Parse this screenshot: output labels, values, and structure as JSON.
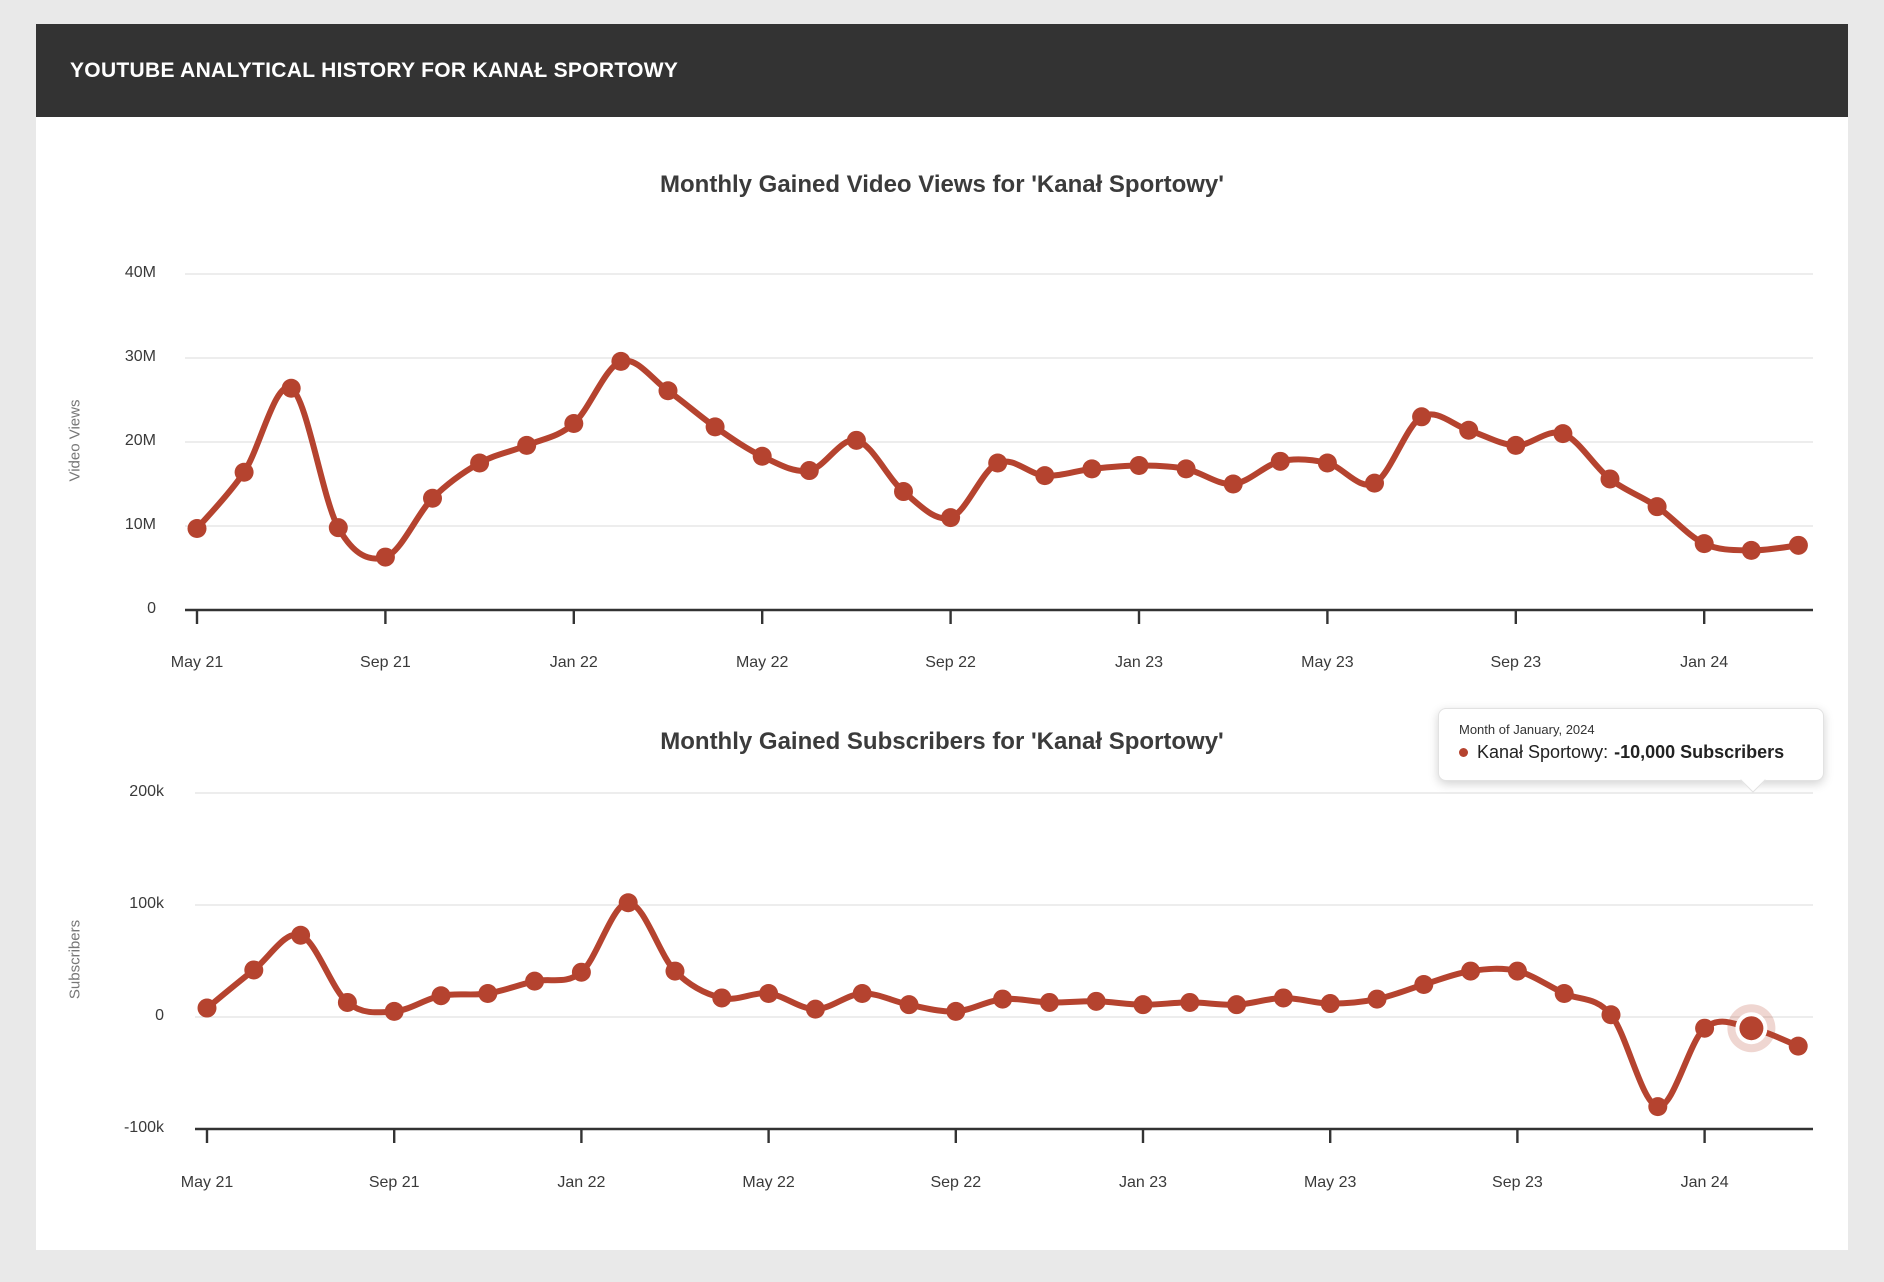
{
  "header": {
    "title": "YOUTUBE ANALYTICAL HISTORY FOR KANAŁ SPORTOWY"
  },
  "colors": {
    "accent": "#b5432f",
    "halo": "rgba(181,67,47,0.22)",
    "grid": "#e7e7e7",
    "axis": "#333333",
    "header_bg": "#333333",
    "page_bg": "#e9e9e9",
    "card_bg": "#ffffff"
  },
  "x_tick_labels": [
    "May 21",
    "Sep 21",
    "Jan 22",
    "May 22",
    "Sep 22",
    "Jan 23",
    "May 23",
    "Sep 23",
    "Jan 24"
  ],
  "chart_data": [
    {
      "type": "line",
      "title": "Monthly Gained Video Views for 'Kanał Sportowy'",
      "ylabel": "Video Views",
      "unit": "million views per month",
      "legend": "none",
      "grid": true,
      "ylim": [
        0,
        42
      ],
      "y_ticks": [
        {
          "label": "40M",
          "v": 40
        },
        {
          "label": "30M",
          "v": 30
        },
        {
          "label": "20M",
          "v": 20
        },
        {
          "label": "10M",
          "v": 10
        },
        {
          "label": "0",
          "v": 0
        }
      ],
      "categories": [
        "May 21",
        "Jun 21",
        "Jul 21",
        "Aug 21",
        "Sep 21",
        "Oct 21",
        "Nov 21",
        "Dec 21",
        "Jan 22",
        "Feb 22",
        "Mar 22",
        "Apr 22",
        "May 22",
        "Jun 22",
        "Jul 22",
        "Aug 22",
        "Sep 22",
        "Oct 22",
        "Nov 22",
        "Dec 22",
        "Jan 23",
        "Feb 23",
        "Mar 23",
        "Apr 23",
        "May 23",
        "Jun 23",
        "Jul 23",
        "Aug 23",
        "Sep 23",
        "Oct 23",
        "Nov 23",
        "Dec 23",
        "Jan 24",
        "Feb 24",
        "Mar 24"
      ],
      "values": [
        9.7,
        16.4,
        26.4,
        9.8,
        6.3,
        13.3,
        17.5,
        19.6,
        22.2,
        29.6,
        26.1,
        21.8,
        18.3,
        16.6,
        20.2,
        14.1,
        11.0,
        17.5,
        16.0,
        16.8,
        17.2,
        16.8,
        15.0,
        17.7,
        17.5,
        15.1,
        23.0,
        21.4,
        19.6,
        21.0,
        15.6,
        12.3,
        7.9,
        7.1,
        7.7
      ]
    },
    {
      "type": "line",
      "title": "Monthly Gained Subscribers for 'Kanał Sportowy'",
      "ylabel": "Subscribers",
      "unit": "thousand subscribers per month",
      "legend": "none",
      "grid": true,
      "ylim": [
        -115,
        215
      ],
      "y_ticks": [
        {
          "label": "200k",
          "v": 200
        },
        {
          "label": "100k",
          "v": 100
        },
        {
          "label": "0",
          "v": 0
        },
        {
          "label": "-100k",
          "v": -100
        }
      ],
      "categories": [
        "May 21",
        "Jun 21",
        "Jul 21",
        "Aug 21",
        "Sep 21",
        "Oct 21",
        "Nov 21",
        "Dec 21",
        "Jan 22",
        "Feb 22",
        "Mar 22",
        "Apr 22",
        "May 22",
        "Jun 22",
        "Jul 22",
        "Aug 22",
        "Sep 22",
        "Oct 22",
        "Nov 22",
        "Dec 22",
        "Jan 23",
        "Feb 23",
        "Mar 23",
        "Apr 23",
        "May 23",
        "Jun 23",
        "Jul 23",
        "Aug 23",
        "Sep 23",
        "Oct 23",
        "Nov 23",
        "Dec 23",
        "Jan 24",
        "Feb 24",
        "Mar 24"
      ],
      "values": [
        8,
        42,
        73,
        13,
        5,
        19,
        21,
        32,
        40,
        102,
        41,
        17,
        21,
        7,
        21,
        11,
        5,
        16,
        13,
        14,
        11,
        13,
        11,
        17,
        12,
        16,
        29,
        41,
        41,
        21,
        2,
        -80,
        -10,
        -10,
        -26
      ],
      "hover_index": 33
    }
  ],
  "tooltip": {
    "date_line": "Month of January, 2024",
    "series_name": "Kanał Sportowy:",
    "value_text": "-10,000 Subscribers"
  }
}
